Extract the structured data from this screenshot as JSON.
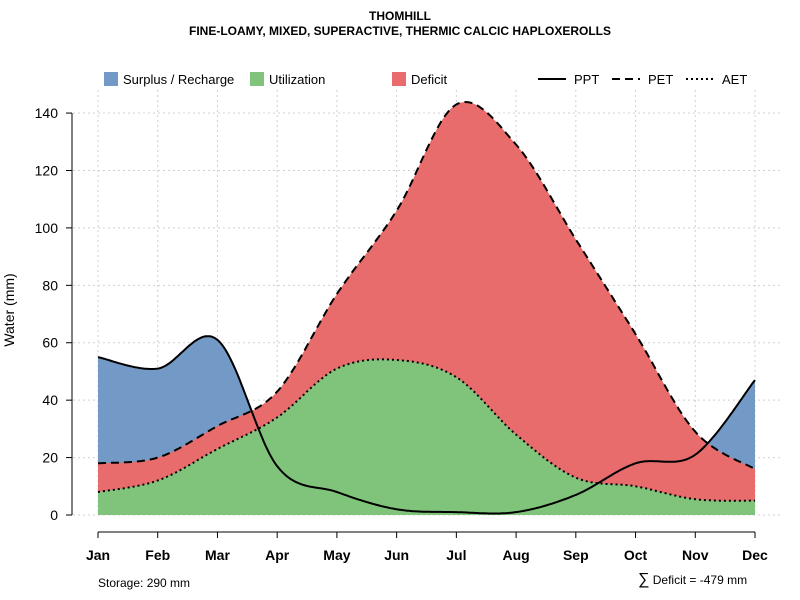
{
  "chart_data": {
    "type": "area",
    "title": "THOMHILL",
    "subtitle": "FINE-LOAMY, MIXED, SUPERACTIVE, THERMIC CALCIC HAPLOXEROLLS",
    "xlabel": "",
    "ylabel": "Water (mm)",
    "ylim": [
      0,
      145
    ],
    "yticks": [
      0,
      20,
      40,
      60,
      80,
      100,
      120,
      140
    ],
    "grid": true,
    "categories": [
      "Jan",
      "Feb",
      "Mar",
      "Apr",
      "May",
      "Jun",
      "Jul",
      "Aug",
      "Sep",
      "Oct",
      "Nov",
      "Dec"
    ],
    "series": [
      {
        "name": "PPT",
        "style": "solid",
        "values": [
          55,
          51,
          61,
          17,
          8,
          2,
          1,
          1,
          7,
          18,
          21,
          47
        ]
      },
      {
        "name": "PET",
        "style": "dashed",
        "values": [
          18,
          20,
          31,
          43,
          77,
          106,
          143,
          129,
          96,
          63,
          29,
          16
        ]
      },
      {
        "name": "AET",
        "style": "dotted",
        "values": [
          8,
          12,
          23,
          34,
          51,
          54,
          48,
          28,
          13,
          10,
          5.5,
          5
        ]
      }
    ],
    "fills": [
      {
        "name": "Surplus / Recharge",
        "color": "#7399c6"
      },
      {
        "name": "Utilization",
        "color": "#7fc47a"
      },
      {
        "name": "Deficit",
        "color": "#e86c6c"
      }
    ],
    "legend": {
      "position": "top",
      "fill_items": [
        "Surplus / Recharge",
        "Utilization",
        "Deficit"
      ],
      "line_items": [
        "PPT",
        "PET",
        "AET"
      ]
    },
    "storage_label": "Storage: 290 mm",
    "deficit_symbol": "∑",
    "deficit_label": "Deficit = -479 mm"
  }
}
